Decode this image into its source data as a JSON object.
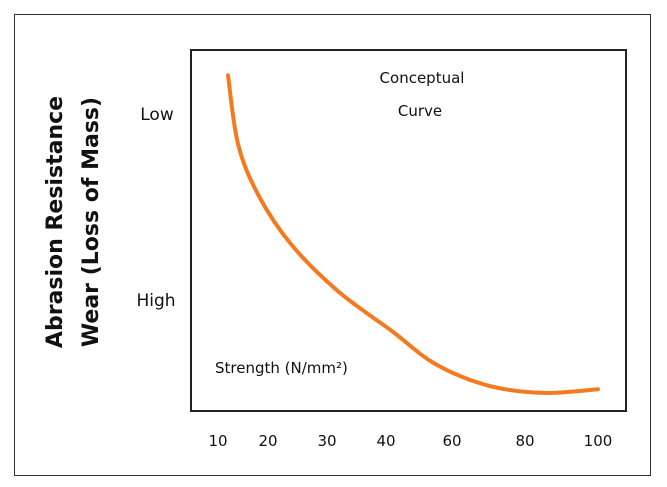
{
  "chart_data": {
    "type": "line",
    "title": "",
    "annotation_lines": [
      "Conceptual",
      "Curve"
    ],
    "ylabel_lines": [
      "Abrasion Resistance",
      "Wear (Loss of Mass)"
    ],
    "xlabel": "Strength (N/mm²)",
    "x_ticks": [
      "10",
      "20",
      "30",
      "40",
      "60",
      "80",
      "100"
    ],
    "y_categories": [
      "Low",
      "High"
    ],
    "series": [
      {
        "color": "#f47a20",
        "points": [
          {
            "x": 12,
            "y": 0.93
          },
          {
            "x": 14,
            "y": 0.74
          },
          {
            "x": 18,
            "y": 0.6
          },
          {
            "x": 24,
            "y": 0.46
          },
          {
            "x": 32,
            "y": 0.33
          },
          {
            "x": 42,
            "y": 0.22
          },
          {
            "x": 55,
            "y": 0.13
          },
          {
            "x": 70,
            "y": 0.07
          },
          {
            "x": 85,
            "y": 0.05
          },
          {
            "x": 100,
            "y": 0.06
          }
        ]
      }
    ],
    "grid": false,
    "legend": "none"
  }
}
